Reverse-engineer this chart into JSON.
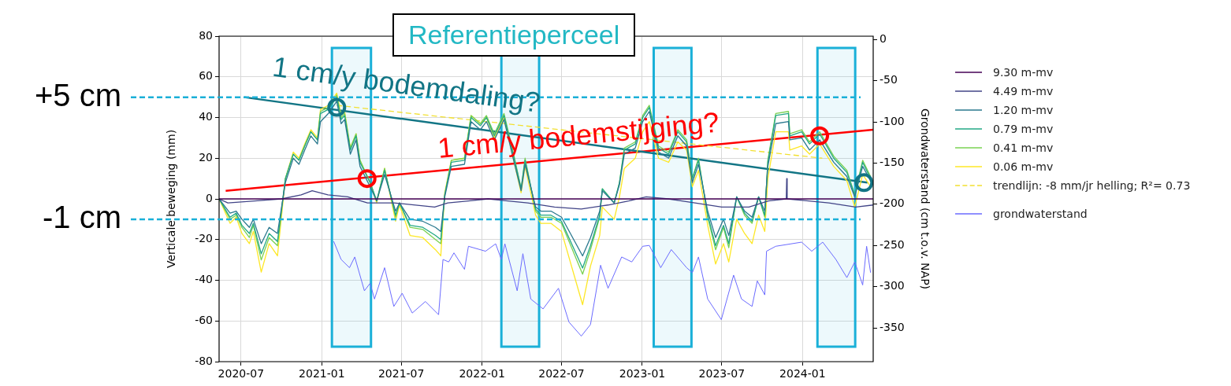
{
  "chart_data": {
    "type": "line",
    "title": "Referentieperceel",
    "ylabel": "Verticale beweging (mm)",
    "y2label": "Grondwaterstand (cm t.o.v. NAP)",
    "xlim": [
      "2020-05-12",
      "2024-06-10"
    ],
    "xticks": [
      "2020-07",
      "2021-01",
      "2021-07",
      "2022-01",
      "2022-07",
      "2023-01",
      "2023-07",
      "2024-01"
    ],
    "ylim": [
      -80,
      80
    ],
    "yticks": [
      -80,
      -60,
      -40,
      -20,
      0,
      20,
      40,
      60,
      80
    ],
    "y2lim": [
      -391,
      4
    ],
    "y2ticks": [
      -350,
      -300,
      -250,
      -200,
      -150,
      -100,
      -50,
      0
    ],
    "grid": true,
    "legend": "right",
    "x": [
      "2020-05-12",
      "2020-06-06",
      "2020-06-20",
      "2020-07-03",
      "2020-07-20",
      "2020-07-29",
      "2020-08-16",
      "2020-09-03",
      "2020-09-22",
      "2020-10-10",
      "2020-10-28",
      "2020-11-10",
      "2020-11-23",
      "2020-12-07",
      "2020-12-22",
      "2020-12-29",
      "2021-01-16",
      "2021-02-04",
      "2021-02-14",
      "2021-02-22",
      "2021-03-07",
      "2021-03-20",
      "2021-03-29",
      "2021-04-21",
      "2021-05-06",
      "2021-05-24",
      "2021-06-18",
      "2021-06-27",
      "2021-07-21",
      "2021-08-19",
      "2021-09-17",
      "2021-09-29",
      "2021-10-08",
      "2021-10-23",
      "2021-11-22",
      "2021-12-07",
      "2021-12-28",
      "2022-01-11",
      "2022-01-29",
      "2022-02-20",
      "2022-03-15",
      "2022-03-31",
      "2022-04-09",
      "2022-05-03",
      "2022-05-15",
      "2022-06-07",
      "2022-07-01",
      "2022-08-18",
      "2022-09-05",
      "2022-09-26",
      "2022-10-02",
      "2022-10-29",
      "2022-11-10",
      "2022-11-21",
      "2022-12-16",
      "2023-01-02",
      "2023-01-17",
      "2023-02-07",
      "2023-03-02",
      "2023-03-23",
      "2023-04-12",
      "2023-04-25",
      "2023-05-09",
      "2023-05-30",
      "2023-06-17",
      "2023-07-05",
      "2023-07-17",
      "2023-08-04",
      "2023-08-22",
      "2023-09-08",
      "2023-09-23",
      "2023-10-07",
      "2023-10-14",
      "2023-11-01",
      "2023-11-30",
      "2023-12-03",
      "2023-12-30",
      "2024-01-17",
      "2024-02-09",
      "2024-03-12",
      "2024-04-11",
      "2024-04-29",
      "2024-05-17",
      "2024-06-04"
    ],
    "series": [
      {
        "name": "grondwaterstand",
        "color": "#6b6bff",
        "axis": "y2",
        "x": [
          "2021-01-28",
          "2021-02-14",
          "2021-03-05",
          "2021-03-17",
          "2021-04-08",
          "2021-04-21",
          "2021-05-01",
          "2021-05-24",
          "2021-06-14",
          "2021-07-03",
          "2021-07-26",
          "2021-08-25",
          "2021-09-24",
          "2021-10-04",
          "2021-10-17",
          "2021-10-29",
          "2021-11-22",
          "2021-12-01",
          "2022-01-09",
          "2022-02-01",
          "2022-02-14",
          "2022-02-22",
          "2022-03-22",
          "2022-04-04",
          "2022-04-22",
          "2022-05-20",
          "2022-06-24",
          "2022-07-18",
          "2022-08-15",
          "2022-09-05",
          "2022-09-28",
          "2022-10-15",
          "2022-11-15",
          "2022-12-08",
          "2023-01-02",
          "2023-01-17",
          "2023-02-12",
          "2023-03-08",
          "2023-04-12",
          "2023-04-25",
          "2023-05-09",
          "2023-05-30",
          "2023-06-30",
          "2023-07-28",
          "2023-08-15",
          "2023-09-08",
          "2023-09-20",
          "2023-10-07",
          "2023-10-11",
          "2023-11-01",
          "2023-12-30",
          "2024-01-22",
          "2024-02-16",
          "2024-03-17",
          "2024-04-11",
          "2024-04-29",
          "2024-05-17",
          "2024-05-26",
          "2024-06-04"
        ],
        "values": [
          -245,
          -267,
          -277,
          -264,
          -305,
          -296,
          -315,
          -277,
          -324,
          -308,
          -332,
          -318,
          -334,
          -267,
          -270,
          -259,
          -279,
          -251,
          -257,
          -248,
          -267,
          -248,
          -305,
          -260,
          -315,
          -327,
          -302,
          -343,
          -360,
          -346,
          -274,
          -302,
          -264,
          -270,
          -251,
          -250,
          -277,
          -255,
          -277,
          -283,
          -264,
          -315,
          -340,
          -286,
          -315,
          -324,
          -293,
          -310,
          -257,
          -251,
          -246,
          -257,
          -246,
          -267,
          -289,
          -270,
          -298,
          -251,
          -283
        ]
      },
      {
        "name": "9.30 m-mv",
        "color": "#440154",
        "x": [
          "2020-05-12",
          "2024-06-10"
        ],
        "values": [
          0,
          0
        ]
      },
      {
        "name": "4.49 m-mv",
        "color": "#414487",
        "x": [
          "2020-05-12",
          "2020-06-01",
          "2020-08-01",
          "2020-10-01",
          "2020-11-15",
          "2020-12-10",
          "2021-01-15",
          "2021-03-01",
          "2021-04-15",
          "2021-06-15",
          "2021-09-15",
          "2021-10-15",
          "2021-12-01",
          "2022-01-15",
          "2022-03-01",
          "2022-04-15",
          "2022-06-15",
          "2022-08-15",
          "2022-10-15",
          "2022-12-01",
          "2023-01-10",
          "2023-03-01",
          "2023-05-01",
          "2023-07-01",
          "2023-09-01",
          "2023-10-15",
          "2023-11-25",
          "2023-11-26",
          "2023-11-27",
          "2024-01-15",
          "2024-03-01",
          "2024-05-01",
          "2024-06-10"
        ],
        "values": [
          0,
          -2,
          -1,
          0,
          2,
          4,
          2,
          1,
          -2,
          -2,
          -4,
          -2,
          -1,
          0,
          -1,
          -2,
          -4,
          -5,
          -3,
          -1,
          1,
          0,
          -2,
          -4,
          -4,
          -1,
          0,
          10,
          0,
          -1,
          -2,
          -4,
          -3
        ]
      },
      {
        "name": "1.20 m-mv",
        "color": "#2a788e",
        "values": [
          0,
          -7,
          -6,
          -10,
          -14,
          -10,
          -22,
          -14,
          -17,
          8,
          20,
          17,
          24,
          31,
          27,
          38,
          42,
          48,
          37,
          39,
          22,
          29,
          16,
          6,
          -1,
          12,
          -6,
          -2,
          -10,
          -11,
          -14,
          -16,
          1,
          16,
          17,
          38,
          34,
          38,
          29,
          39,
          18,
          4,
          17,
          -4,
          -6,
          -6,
          -9,
          -28,
          -19,
          -6,
          4,
          -2,
          7,
          22,
          25,
          38,
          43,
          23,
          20,
          31,
          26,
          8,
          17,
          -6,
          -19,
          -10,
          -18,
          1,
          -6,
          -9,
          1,
          -6,
          16,
          37,
          38,
          29,
          30,
          24,
          29,
          18,
          11,
          1,
          16,
          9
        ]
      },
      {
        "name": "0.79 m-mv",
        "color": "#22a884",
        "values": [
          0,
          -9,
          -7,
          -13,
          -17,
          -12,
          -27,
          -17,
          -21,
          10,
          22,
          19,
          26,
          33,
          29,
          42,
          44,
          50,
          39,
          41,
          24,
          31,
          18,
          8,
          -1,
          14,
          -8,
          -2,
          -13,
          -14,
          -18,
          -20,
          2,
          18,
          19,
          40,
          36,
          40,
          31,
          41,
          20,
          5,
          19,
          -5,
          -8,
          -8,
          -11,
          -34,
          -23,
          -8,
          5,
          -2,
          8,
          24,
          27,
          40,
          45,
          25,
          22,
          33,
          28,
          10,
          19,
          -8,
          -23,
          -13,
          -22,
          1,
          -7,
          -11,
          1,
          -8,
          18,
          41,
          42,
          31,
          33,
          27,
          32,
          20,
          13,
          2,
          18,
          10
        ]
      },
      {
        "name": "0.41 m-mv",
        "color": "#7ad151",
        "values": [
          0,
          -10,
          -8,
          -14,
          -19,
          -13,
          -30,
          -19,
          -23,
          10,
          22,
          19,
          26,
          33,
          29,
          43,
          45,
          51,
          40,
          42,
          25,
          32,
          19,
          8,
          -1,
          15,
          -9,
          -2,
          -14,
          -15,
          -20,
          -22,
          2,
          19,
          20,
          41,
          37,
          41,
          32,
          42,
          21,
          5,
          20,
          -6,
          -9,
          -9,
          -12,
          -37,
          -25,
          -9,
          5,
          -2,
          8,
          25,
          28,
          41,
          46,
          26,
          23,
          34,
          29,
          10,
          20,
          -9,
          -25,
          -14,
          -24,
          1,
          -8,
          -12,
          1,
          -9,
          19,
          42,
          43,
          32,
          34,
          28,
          33,
          21,
          14,
          2,
          19,
          11
        ]
      },
      {
        "name": "0.06 m-mv",
        "color": "#fde725",
        "values": [
          0,
          -12,
          -9,
          -17,
          -22,
          -16,
          -36,
          -22,
          -28,
          10,
          23,
          20,
          27,
          34,
          30,
          44,
          46,
          52,
          41,
          43,
          25,
          32,
          19,
          8,
          -2,
          15,
          -11,
          -3,
          -18,
          -19,
          -25,
          -28,
          3,
          19,
          20,
          41,
          37,
          40,
          30,
          40,
          18,
          3,
          16,
          -8,
          -12,
          -12,
          -16,
          -52,
          -33,
          -18,
          -4,
          -10,
          1,
          15,
          20,
          33,
          38,
          20,
          18,
          28,
          24,
          6,
          14,
          -13,
          -32,
          -22,
          -31,
          -10,
          -17,
          -22,
          -8,
          -16,
          10,
          33,
          33,
          24,
          26,
          22,
          27,
          16,
          9,
          -4,
          12,
          6
        ]
      },
      {
        "name": "trendlijn: -8 mm/jr helling; R²= 0.73",
        "color": "#f2e030",
        "line_style": "dashed",
        "x": [
          "2021-02-04",
          "2024-02-15"
        ],
        "values": [
          46,
          20
        ]
      },
      {
        "type": "line",
        "color": "#127585",
        "x": [
          "2020-07-08",
          "2024-05-28"
        ],
        "values": [
          50,
          8
        ]
      },
      {
        "type": "line",
        "color": "#ff0000",
        "x": [
          "2020-05-27",
          "2024-06-10"
        ],
        "values": [
          4,
          34
        ]
      },
      {
        "type": "scatter",
        "marker": "circle",
        "color": "#127585",
        "x": [
          "2021-02-04",
          "2024-05-20"
        ],
        "values": [
          45,
          8
        ]
      },
      {
        "type": "scatter",
        "marker": "circle",
        "color": "#ff0000",
        "x": [
          "2021-04-14",
          "2024-02-09"
        ],
        "values": [
          10,
          31
        ]
      }
    ],
    "annotations": [
      "1 cm/y bodemdaling?",
      "1 cm/y bodemstijging?"
    ],
    "ref_lines": [
      {
        "axis": "y",
        "value": 50,
        "label": "+5 cm",
        "color": "#1ab0d8",
        "line_style": "dashed"
      },
      {
        "axis": "y",
        "value": -10,
        "label": "-1 cm",
        "color": "#1ab0d8",
        "line_style": "dashed"
      }
    ],
    "bands": [
      {
        "axis": "x",
        "from": "2021-01-24",
        "to": "2021-04-23",
        "color": "#1ab0d8"
      },
      {
        "axis": "x",
        "from": "2022-02-14",
        "to": "2022-05-11",
        "color": "#1ab0d8"
      },
      {
        "axis": "x",
        "from": "2023-01-27",
        "to": "2023-04-23",
        "color": "#1ab0d8"
      },
      {
        "axis": "x",
        "from": "2024-02-04",
        "to": "2024-04-30",
        "color": "#1ab0d8"
      }
    ]
  }
}
